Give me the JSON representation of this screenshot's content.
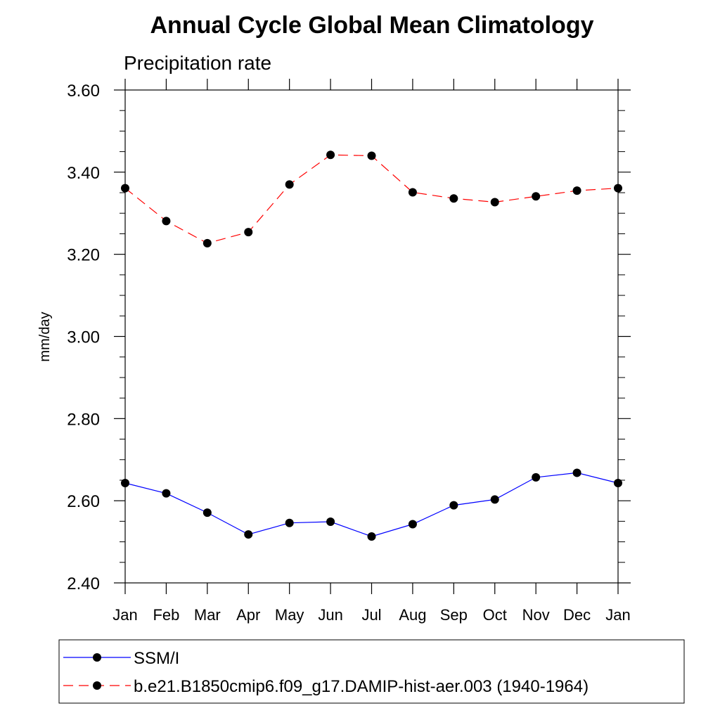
{
  "chart_data": {
    "type": "line",
    "title": "Annual Cycle Global Mean Climatology",
    "subtitle": "Precipitation rate",
    "ylabel": "mm/day",
    "xlabel": "",
    "ylim": [
      2.4,
      3.6
    ],
    "yticks": [
      "2.40",
      "2.60",
      "2.80",
      "3.00",
      "3.20",
      "3.40",
      "3.60"
    ],
    "yminor_step": 0.05,
    "categories": [
      "Jan",
      "Feb",
      "Mar",
      "Apr",
      "May",
      "Jun",
      "Jul",
      "Aug",
      "Sep",
      "Oct",
      "Nov",
      "Dec",
      "Jan"
    ],
    "grid": false,
    "legend_position": "bottom",
    "series": [
      {
        "name": "SSM/I",
        "color": "#0000ff",
        "line_style": "solid",
        "marker": "filled-circle",
        "values": [
          2.643,
          2.618,
          2.571,
          2.518,
          2.546,
          2.549,
          2.513,
          2.543,
          2.589,
          2.603,
          2.657,
          2.668,
          2.643
        ]
      },
      {
        "name": "b.e21.B1850cmip6.f09_g17.DAMIP-hist-aer.003 (1940-1964)",
        "color": "#ff0000",
        "line_style": "dashed",
        "marker": "filled-circle",
        "values": [
          3.361,
          3.281,
          3.227,
          3.254,
          3.37,
          3.442,
          3.44,
          3.351,
          3.336,
          3.327,
          3.341,
          3.355,
          3.361
        ]
      }
    ]
  }
}
